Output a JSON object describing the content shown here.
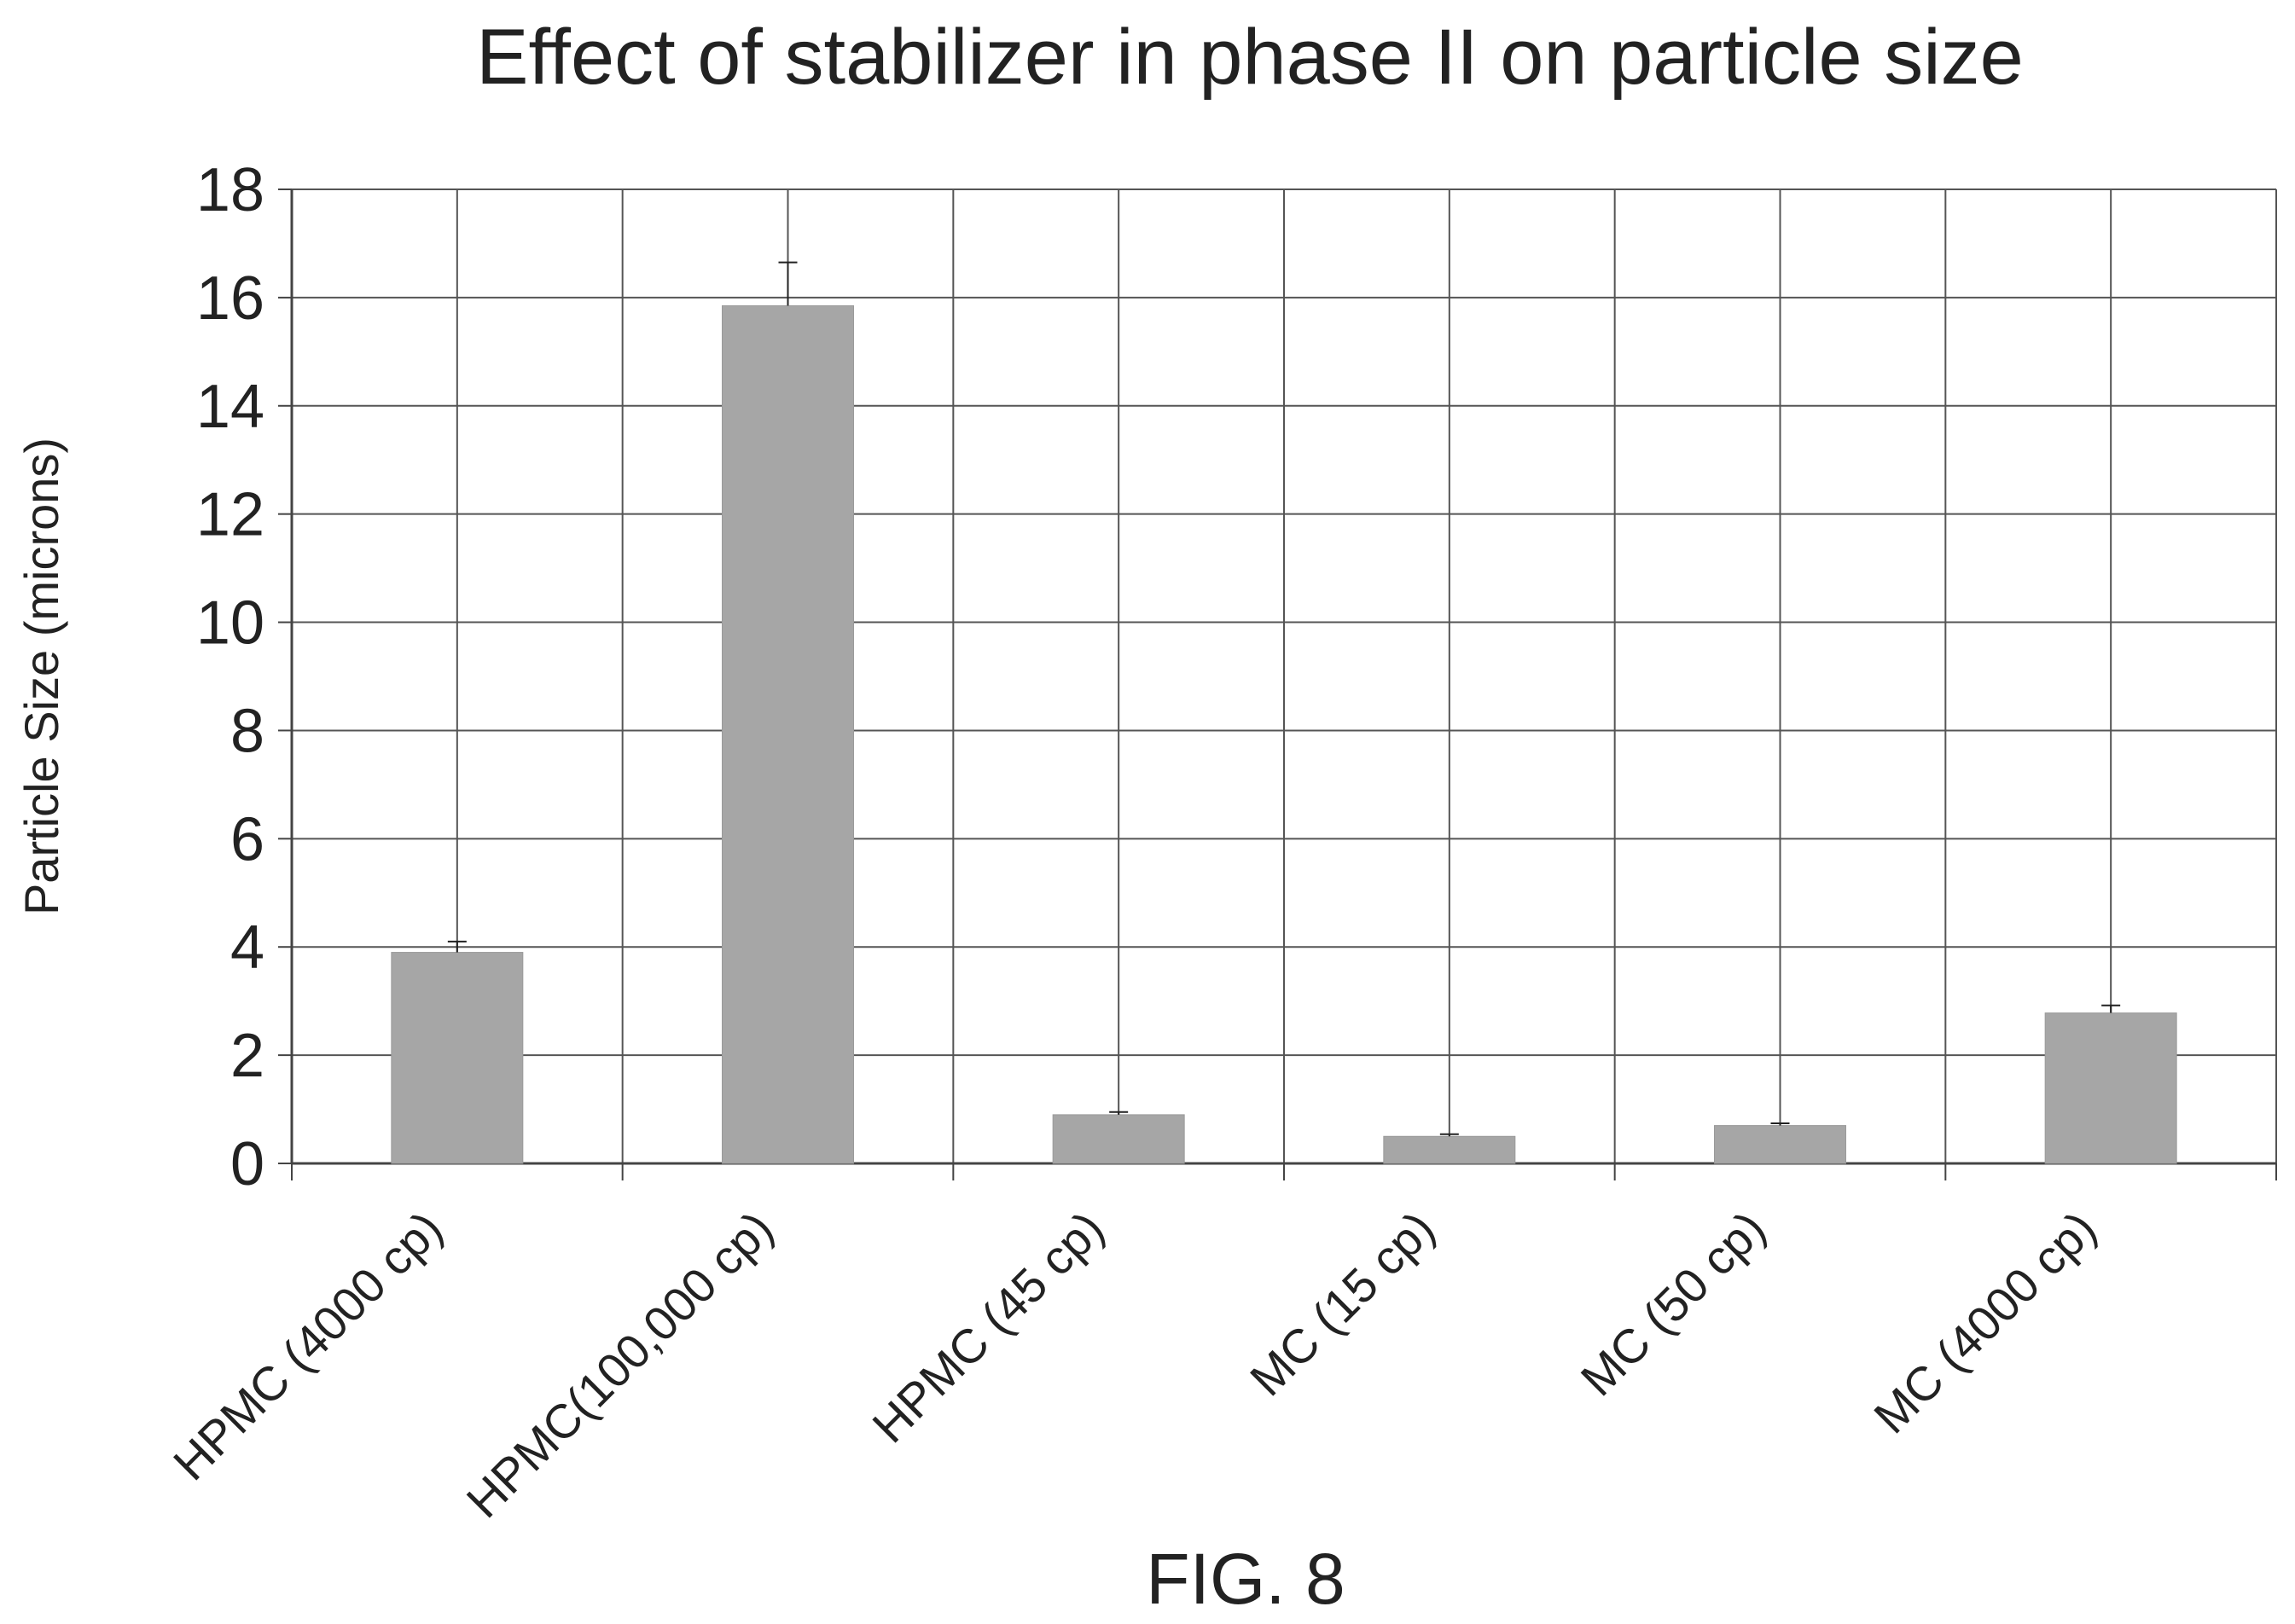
{
  "colors": {
    "bar": "#a6a6a6",
    "grid": "#555555",
    "axis": "#444444",
    "text": "#222222",
    "error_bar": "#222222"
  },
  "chart_data": {
    "type": "bar",
    "title": "Effect of stabilizer in phase II on particle size",
    "xlabel": "",
    "ylabel": "Particle Size (microns)",
    "categories": [
      "HPMC (4000 cp)",
      "HPMC(100,000 cp)",
      "HPMC (45 cp)",
      "MC (15 cp)",
      "MC (50 cp)",
      "MC (4000 cp)"
    ],
    "values": [
      3.9,
      15.85,
      0.9,
      0.5,
      0.7,
      2.78
    ],
    "error_plus": [
      0.2,
      0.8,
      0.05,
      0.04,
      0.04,
      0.14
    ],
    "ylim": [
      0,
      18
    ],
    "yticks": [
      0,
      2,
      4,
      6,
      8,
      10,
      12,
      14,
      16,
      18
    ],
    "ytick_labels": [
      "0",
      "2",
      "4",
      "6",
      "8",
      "10",
      "12",
      "14",
      "16",
      "18"
    ],
    "grid": true,
    "legend": "none"
  },
  "caption": "FIG. 8"
}
